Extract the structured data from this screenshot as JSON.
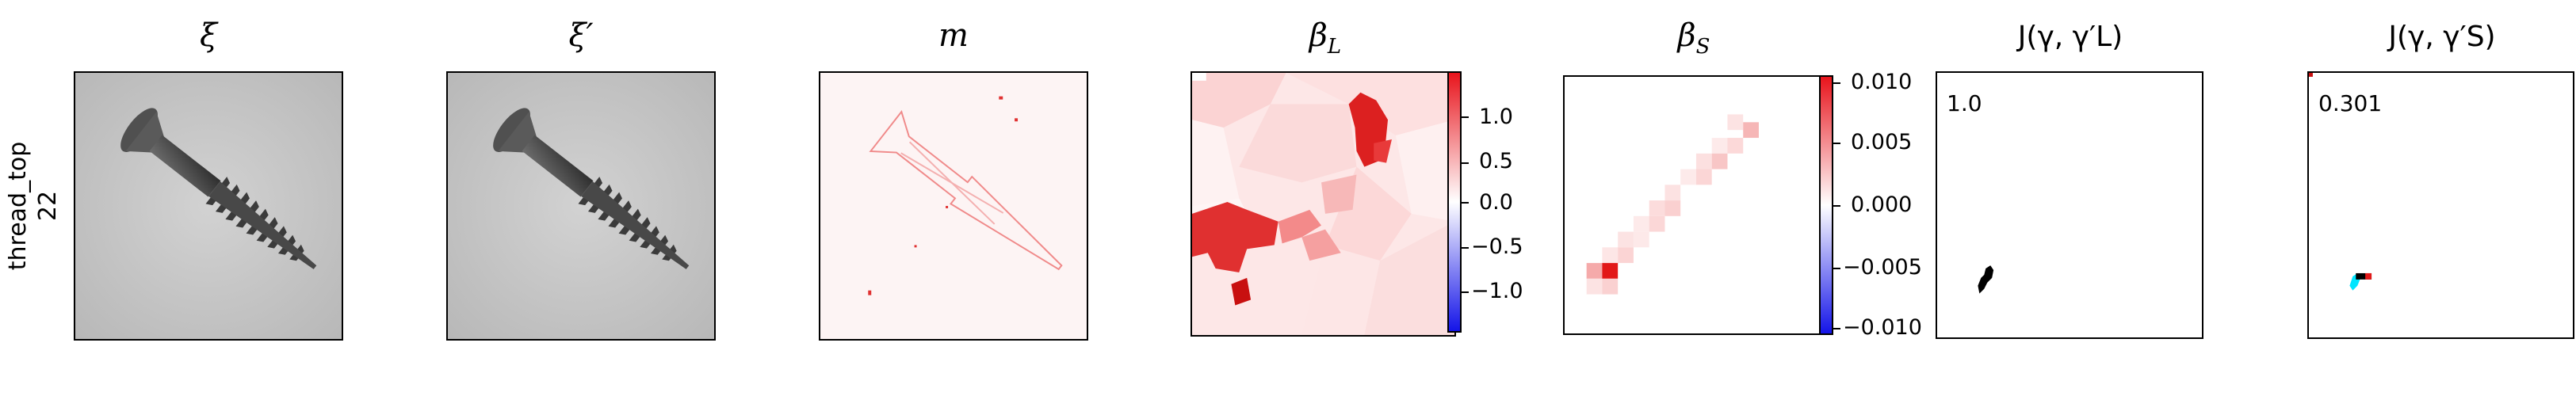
{
  "row_label": {
    "category": "thread_top",
    "index": "22"
  },
  "panels": {
    "xi": {
      "title": "ξ"
    },
    "xi_prime": {
      "title": "ξ′"
    },
    "m": {
      "title": "m"
    },
    "beta_L": {
      "title": "β",
      "sub": "L",
      "colorbar": {
        "ticks": [
          "1.0",
          "0.5",
          "0.0",
          "−0.5",
          "−1.0"
        ],
        "range": [
          -1.4,
          1.4
        ]
      }
    },
    "beta_S": {
      "title": "β",
      "sub": "S",
      "colorbar": {
        "ticks": [
          "0.010",
          "0.005",
          "0.000",
          "−0.005",
          "−0.010"
        ],
        "range": [
          -0.0105,
          0.0105
        ]
      }
    },
    "J_L": {
      "title": "J(γ, γ′L)",
      "score": "1.0"
    },
    "J_S": {
      "title": "J(γ, γ′S)",
      "score": "0.301"
    }
  },
  "colors": {
    "positive": "#e8141c",
    "negative": "#1414e8",
    "neutral": "#ffffff",
    "mask_cyan": "#00e5ff"
  }
}
